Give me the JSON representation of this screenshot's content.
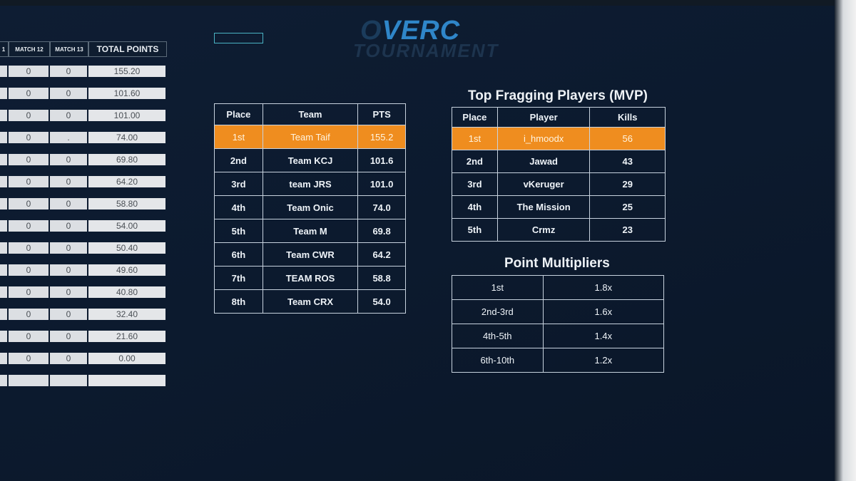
{
  "logo": {
    "prefix": "O",
    "main": "VERC",
    "sub": "TOURNAMENT"
  },
  "score_table": {
    "headers": [
      "1",
      "MATCH 12",
      "MATCH 13",
      "TOTAL POINTS"
    ],
    "rows": [
      {
        "m12": "0",
        "m13": "0",
        "total": "155.20"
      },
      {
        "m12": "0",
        "m13": "0",
        "total": "101.60"
      },
      {
        "m12": "0",
        "m13": "0",
        "total": "101.00"
      },
      {
        "m12": "0",
        "m13": ".",
        "total": "74.00"
      },
      {
        "m12": "0",
        "m13": "0",
        "total": "69.80"
      },
      {
        "m12": "0",
        "m13": "0",
        "total": "64.20"
      },
      {
        "m12": "0",
        "m13": "0",
        "total": "58.80"
      },
      {
        "m12": "0",
        "m13": "0",
        "total": "54.00"
      },
      {
        "m12": "0",
        "m13": "0",
        "total": "50.40"
      },
      {
        "m12": "0",
        "m13": "0",
        "total": "49.60"
      },
      {
        "m12": "0",
        "m13": "0",
        "total": "40.80"
      },
      {
        "m12": "0",
        "m13": "0",
        "total": "32.40"
      },
      {
        "m12": "0",
        "m13": "0",
        "total": "21.60"
      },
      {
        "m12": "0",
        "m13": "0",
        "total": "0.00"
      },
      {
        "m12": "",
        "m13": "",
        "total": ""
      }
    ]
  },
  "standings": {
    "headers": [
      "Place",
      "Team",
      "PTS"
    ],
    "rows": [
      {
        "place": "1st",
        "team": "Team Taif",
        "pts": "155.2"
      },
      {
        "place": "2nd",
        "team": "Team KCJ",
        "pts": "101.6"
      },
      {
        "place": "3rd",
        "team": "team JRS",
        "pts": "101.0"
      },
      {
        "place": "4th",
        "team": "Team Onic",
        "pts": "74.0"
      },
      {
        "place": "5th",
        "team": "Team M",
        "pts": "69.8"
      },
      {
        "place": "6th",
        "team": "Team CWR",
        "pts": "64.2"
      },
      {
        "place": "7th",
        "team": "TEAM ROS",
        "pts": "58.8"
      },
      {
        "place": "8th",
        "team": "Team CRX",
        "pts": "54.0"
      }
    ]
  },
  "mvp": {
    "title": "Top Fragging Players (MVP)",
    "headers": [
      "Place",
      "Player",
      "Kills"
    ],
    "rows": [
      {
        "place": "1st",
        "player": "i_hmoodx",
        "kills": "56"
      },
      {
        "place": "2nd",
        "player": "Jawad",
        "kills": "43"
      },
      {
        "place": "3rd",
        "player": "vKeruger",
        "kills": "29"
      },
      {
        "place": "4th",
        "player": "The Mission",
        "kills": "25"
      },
      {
        "place": "5th",
        "player": "Crmz",
        "kills": "23"
      }
    ]
  },
  "multipliers": {
    "title": "Point Multipliers",
    "rows": [
      {
        "range": "1st",
        "value": "1.8x"
      },
      {
        "range": "2nd-3rd",
        "value": "1.6x"
      },
      {
        "range": "4th-5th",
        "value": "1.4x"
      },
      {
        "range": "6th-10th",
        "value": "1.2x"
      }
    ]
  },
  "colors": {
    "highlight": "#ef8d1f",
    "background": "#0c1a2e",
    "logo_blue": "#2f86c9"
  }
}
